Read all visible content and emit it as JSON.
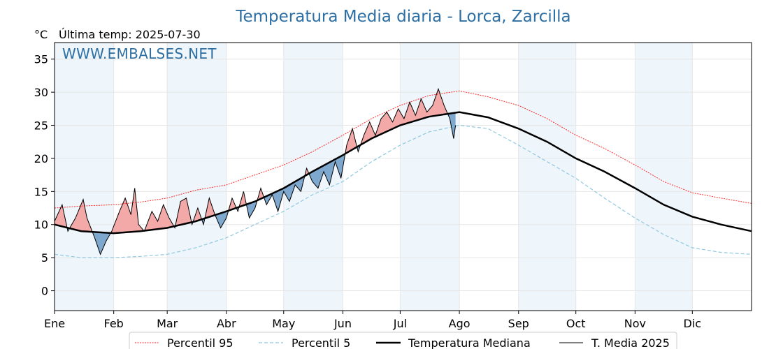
{
  "header": {
    "title": "Temperatura Media diaria - Lorca, Zarcilla",
    "unit": "°C",
    "last_temp": "Última temp: 2025-07-30",
    "watermark": "WWW.EMBALSES.NET"
  },
  "legend": {
    "p95": "Percentil 95",
    "p5": "Percentil 5",
    "median": "Temperatura Mediana",
    "current": "T. Media 2025"
  },
  "colors": {
    "title": "#2e6fa3",
    "p95": "#ff2a2a",
    "p5": "#8fc8e0",
    "median": "#000000",
    "current": "#000000",
    "above_fill": "#f4a9a9",
    "below_fill": "#7fa8cf",
    "band": "#eef5fb"
  },
  "chart_data": {
    "type": "line",
    "x_unit": "day_of_year",
    "xlim": [
      1,
      366
    ],
    "ylim": [
      -3,
      37.5
    ],
    "yticks": [
      0,
      5,
      10,
      15,
      20,
      25,
      30,
      35
    ],
    "months": [
      {
        "label": "Ene",
        "start": 1
      },
      {
        "label": "Feb",
        "start": 32
      },
      {
        "label": "Mar",
        "start": 60
      },
      {
        "label": "Abr",
        "start": 91
      },
      {
        "label": "May",
        "start": 121
      },
      {
        "label": "Jun",
        "start": 152
      },
      {
        "label": "Jul",
        "start": 182
      },
      {
        "label": "Ago",
        "start": 213
      },
      {
        "label": "Sep",
        "start": 244
      },
      {
        "label": "Oct",
        "start": 274
      },
      {
        "label": "Nov",
        "start": 305
      },
      {
        "label": "Dic",
        "start": 335
      }
    ],
    "grid": true,
    "legend_position": "bottom",
    "series": [
      {
        "name": "Percentil 95",
        "style": "dotted",
        "points": [
          [
            1,
            12.5
          ],
          [
            15,
            12.8
          ],
          [
            32,
            13.0
          ],
          [
            46,
            13.4
          ],
          [
            60,
            14.0
          ],
          [
            75,
            15.2
          ],
          [
            91,
            16.0
          ],
          [
            106,
            17.5
          ],
          [
            121,
            19.0
          ],
          [
            136,
            21.0
          ],
          [
            152,
            23.5
          ],
          [
            167,
            26.0
          ],
          [
            182,
            28.0
          ],
          [
            197,
            29.5
          ],
          [
            213,
            30.2
          ],
          [
            228,
            29.3
          ],
          [
            244,
            28.0
          ],
          [
            259,
            26.0
          ],
          [
            274,
            23.5
          ],
          [
            289,
            21.5
          ],
          [
            305,
            19.0
          ],
          [
            320,
            16.5
          ],
          [
            335,
            14.8
          ],
          [
            350,
            14.0
          ],
          [
            366,
            13.2
          ]
        ]
      },
      {
        "name": "Percentil 5",
        "style": "dashed",
        "points": [
          [
            1,
            5.5
          ],
          [
            15,
            5.0
          ],
          [
            32,
            5.0
          ],
          [
            46,
            5.2
          ],
          [
            60,
            5.5
          ],
          [
            75,
            6.5
          ],
          [
            91,
            8.0
          ],
          [
            106,
            10.0
          ],
          [
            121,
            12.0
          ],
          [
            136,
            14.5
          ],
          [
            152,
            16.5
          ],
          [
            167,
            19.5
          ],
          [
            182,
            22.0
          ],
          [
            197,
            24.0
          ],
          [
            213,
            25.0
          ],
          [
            228,
            24.5
          ],
          [
            244,
            22.0
          ],
          [
            259,
            19.5
          ],
          [
            274,
            17.0
          ],
          [
            289,
            14.0
          ],
          [
            305,
            11.0
          ],
          [
            320,
            8.5
          ],
          [
            335,
            6.5
          ],
          [
            350,
            5.8
          ],
          [
            366,
            5.5
          ]
        ]
      },
      {
        "name": "Temperatura Mediana",
        "style": "solid-thick",
        "points": [
          [
            1,
            10.0
          ],
          [
            15,
            9.0
          ],
          [
            32,
            8.7
          ],
          [
            46,
            9.0
          ],
          [
            60,
            9.5
          ],
          [
            75,
            10.5
          ],
          [
            91,
            12.0
          ],
          [
            106,
            13.5
          ],
          [
            121,
            15.5
          ],
          [
            136,
            18.0
          ],
          [
            152,
            20.5
          ],
          [
            167,
            23.0
          ],
          [
            182,
            25.0
          ],
          [
            197,
            26.3
          ],
          [
            213,
            27.0
          ],
          [
            228,
            26.2
          ],
          [
            244,
            24.5
          ],
          [
            259,
            22.5
          ],
          [
            274,
            20.0
          ],
          [
            289,
            18.0
          ],
          [
            305,
            15.5
          ],
          [
            320,
            13.0
          ],
          [
            335,
            11.2
          ],
          [
            350,
            10.0
          ],
          [
            366,
            9.0
          ]
        ]
      },
      {
        "name": "T. Media 2025",
        "style": "solid-thin",
        "points": [
          [
            1,
            10.5
          ],
          [
            5,
            13.0
          ],
          [
            8,
            9.0
          ],
          [
            12,
            11.0
          ],
          [
            16,
            13.8
          ],
          [
            18,
            11.0
          ],
          [
            22,
            8.0
          ],
          [
            25,
            5.5
          ],
          [
            28,
            7.5
          ],
          [
            31,
            9.0
          ],
          [
            35,
            12.0
          ],
          [
            38,
            14.0
          ],
          [
            41,
            11.5
          ],
          [
            43,
            15.5
          ],
          [
            45,
            10.0
          ],
          [
            48,
            9.0
          ],
          [
            52,
            12.0
          ],
          [
            55,
            10.5
          ],
          [
            58,
            13.0
          ],
          [
            61,
            11.0
          ],
          [
            64,
            9.5
          ],
          [
            67,
            13.5
          ],
          [
            70,
            14.0
          ],
          [
            73,
            10.0
          ],
          [
            76,
            12.5
          ],
          [
            79,
            10.0
          ],
          [
            82,
            14.0
          ],
          [
            85,
            11.5
          ],
          [
            88,
            9.5
          ],
          [
            91,
            11.0
          ],
          [
            94,
            14.0
          ],
          [
            97,
            12.0
          ],
          [
            100,
            15.0
          ],
          [
            103,
            11.0
          ],
          [
            106,
            12.5
          ],
          [
            109,
            15.5
          ],
          [
            112,
            13.0
          ],
          [
            115,
            14.5
          ],
          [
            118,
            12.0
          ],
          [
            121,
            15.0
          ],
          [
            124,
            13.5
          ],
          [
            127,
            16.0
          ],
          [
            130,
            15.0
          ],
          [
            133,
            18.5
          ],
          [
            136,
            16.5
          ],
          [
            139,
            15.5
          ],
          [
            142,
            18.0
          ],
          [
            145,
            16.0
          ],
          [
            148,
            19.5
          ],
          [
            151,
            17.0
          ],
          [
            154,
            22.0
          ],
          [
            157,
            24.5
          ],
          [
            160,
            21.0
          ],
          [
            163,
            23.5
          ],
          [
            166,
            25.5
          ],
          [
            169,
            23.5
          ],
          [
            172,
            26.0
          ],
          [
            175,
            27.0
          ],
          [
            178,
            25.5
          ],
          [
            181,
            27.5
          ],
          [
            184,
            26.0
          ],
          [
            187,
            28.5
          ],
          [
            190,
            26.5
          ],
          [
            193,
            29.0
          ],
          [
            196,
            27.0
          ],
          [
            199,
            28.0
          ],
          [
            202,
            30.5
          ],
          [
            205,
            28.0
          ],
          [
            208,
            26.0
          ],
          [
            210,
            23.0
          ],
          [
            211,
            25.0
          ]
        ]
      }
    ]
  }
}
